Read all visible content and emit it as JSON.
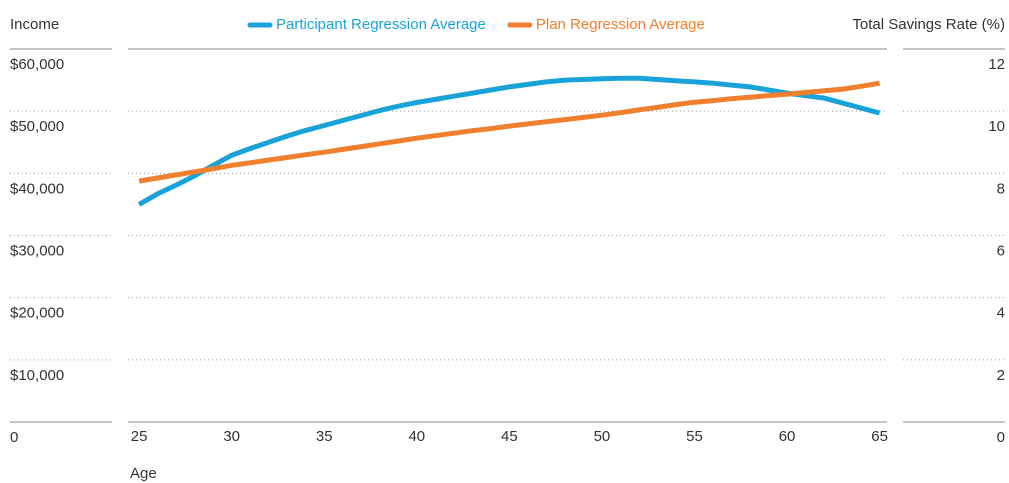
{
  "chart_data": {
    "type": "line",
    "y_label": "Income",
    "y2_label": "Total Savings Rate (%)",
    "x_label": "Age",
    "x": [
      25,
      26,
      27,
      28,
      29,
      30,
      31,
      32,
      33,
      34,
      35,
      36,
      37,
      38,
      39,
      40,
      41,
      42,
      43,
      44,
      45,
      46,
      47,
      48,
      49,
      50,
      51,
      52,
      53,
      54,
      55,
      56,
      57,
      58,
      59,
      60,
      61,
      62,
      63,
      64,
      65
    ],
    "series": [
      {
        "name": "Participant Regression Average",
        "color": "#1aa3d9",
        "values": [
          35000,
          36700,
          38100,
          39600,
          41300,
          42900,
          44000,
          45000,
          46000,
          46900,
          47700,
          48500,
          49300,
          50100,
          50800,
          51400,
          51900,
          52400,
          52900,
          53400,
          53900,
          54300,
          54700,
          55000,
          55100,
          55200,
          55300,
          55300,
          55100,
          54900,
          54700,
          54500,
          54200,
          53900,
          53400,
          52900,
          52500,
          52100,
          51300,
          50500,
          49700
        ]
      },
      {
        "name": "Plan Regression Average",
        "color": "#f07f2e",
        "axis": "y2",
        "values": [
          7.75,
          7.85,
          7.95,
          8.05,
          8.15,
          8.26,
          8.34,
          8.43,
          8.51,
          8.6,
          8.68,
          8.77,
          8.86,
          8.95,
          9.04,
          9.13,
          9.21,
          9.29,
          9.37,
          9.44,
          9.52,
          9.59,
          9.66,
          9.73,
          9.8,
          9.87,
          9.95,
          10.04,
          10.12,
          10.21,
          10.29,
          10.34,
          10.4,
          10.45,
          10.5,
          10.55,
          10.6,
          10.66,
          10.71,
          10.8,
          10.9
        ]
      }
    ],
    "xlim": [
      24.4,
      65.4
    ],
    "xticks": [
      25,
      30,
      35,
      40,
      45,
      50,
      55,
      60,
      65
    ],
    "ylim": [
      0,
      60000
    ],
    "yticks": [
      0,
      {
        "value": 10000,
        "label": "$10,000"
      },
      {
        "value": 20000,
        "label": "$20,000"
      },
      {
        "value": 30000,
        "label": "$30,000"
      },
      {
        "value": 40000,
        "label": "$40,000"
      },
      {
        "value": 50000,
        "label": "$50,000"
      },
      {
        "value": 60000,
        "label": "$60,000"
      }
    ],
    "y2lim": [
      0,
      12
    ],
    "y2ticks": [
      0,
      2,
      4,
      6,
      8,
      10,
      12
    ],
    "legend": "top",
    "grid": true
  }
}
